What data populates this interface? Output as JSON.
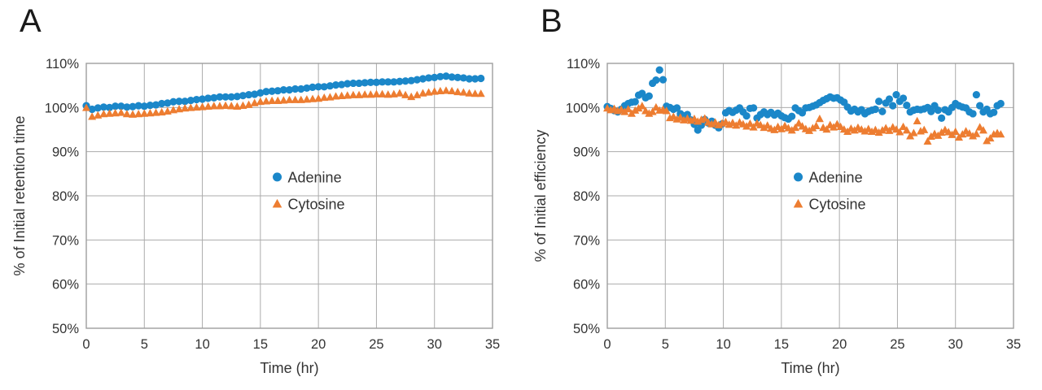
{
  "figure": {
    "background": "#FFFFFF",
    "grid_color": "#ABABAB",
    "border_color": "#9E9E9E",
    "text_color": "#333333"
  },
  "chart_data": [
    {
      "panel_label": "A",
      "type": "scatter",
      "title": "",
      "xlabel": "Time (hr)",
      "ylabel": "% of Initial retention time",
      "xlim": [
        0,
        35
      ],
      "xticks": [
        0,
        5,
        10,
        15,
        20,
        25,
        30,
        35
      ],
      "ylim": [
        50,
        110
      ],
      "yticks": [
        50,
        60,
        70,
        80,
        90,
        100,
        110
      ],
      "ytick_suffix": "%",
      "grid": true,
      "legend_position": "center-inside",
      "series": [
        {
          "name": "Adenine",
          "marker": "circle",
          "color": "#1B87C9",
          "t_start": 0,
          "t_step": 0.5,
          "values": [
            100.4,
            99.6,
            99.9,
            100.1,
            100.0,
            100.3,
            100.3,
            100.1,
            100.2,
            100.4,
            100.3,
            100.5,
            100.6,
            100.9,
            101.0,
            101.3,
            101.4,
            101.4,
            101.6,
            101.8,
            101.9,
            102.1,
            102.2,
            102.4,
            102.4,
            102.4,
            102.5,
            102.7,
            102.9,
            103.0,
            103.3,
            103.6,
            103.7,
            103.8,
            104.0,
            104.0,
            104.2,
            104.2,
            104.4,
            104.6,
            104.7,
            104.7,
            104.9,
            105.1,
            105.2,
            105.4,
            105.5,
            105.5,
            105.6,
            105.7,
            105.7,
            105.8,
            105.8,
            105.8,
            105.9,
            106.0,
            106.1,
            106.3,
            106.5,
            106.7,
            106.8,
            107.0,
            107.1,
            106.9,
            106.8,
            106.7,
            106.5,
            106.5,
            106.6
          ]
        },
        {
          "name": "Cytosine",
          "marker": "triangle",
          "color": "#ED7D31",
          "t_start": 0,
          "t_step": 0.5,
          "values": [
            99.9,
            97.9,
            98.2,
            98.5,
            98.6,
            98.7,
            98.8,
            98.5,
            98.4,
            98.5,
            98.6,
            98.7,
            98.8,
            98.9,
            99.1,
            99.4,
            99.6,
            99.8,
            99.9,
            100.0,
            100.1,
            100.2,
            100.3,
            100.3,
            100.4,
            100.3,
            100.2,
            100.4,
            100.6,
            101.0,
            101.3,
            101.4,
            101.5,
            101.5,
            101.6,
            101.7,
            101.7,
            101.7,
            101.8,
            101.9,
            102.0,
            102.2,
            102.3,
            102.5,
            102.6,
            102.7,
            102.8,
            102.8,
            102.9,
            102.9,
            103.0,
            103.0,
            102.9,
            103.0,
            103.2,
            102.8,
            102.4,
            102.8,
            103.2,
            103.4,
            103.6,
            103.7,
            103.8,
            103.7,
            103.5,
            103.4,
            103.2,
            103.1,
            103.1
          ]
        }
      ]
    },
    {
      "panel_label": "B",
      "type": "scatter",
      "title": "",
      "xlabel": "Time (hr)",
      "ylabel": "% of Initial efficiency",
      "xlim": [
        0,
        35
      ],
      "xticks": [
        0,
        5,
        10,
        15,
        20,
        25,
        30,
        35
      ],
      "ylim": [
        50,
        110
      ],
      "yticks": [
        50,
        60,
        70,
        80,
        90,
        100,
        110
      ],
      "ytick_suffix": "%",
      "grid": true,
      "legend_position": "center-inside",
      "series": [
        {
          "name": "Adenine",
          "marker": "circle",
          "color": "#1B87C9",
          "t_start": 0,
          "t_step": 0.3,
          "values": [
            100.2,
            99.8,
            99.3,
            99.0,
            99.6,
            100.4,
            100.9,
            101.2,
            101.3,
            102.8,
            103.2,
            102.2,
            102.6,
            105.5,
            106.2,
            108.5,
            106.3,
            100.3,
            100.0,
            99.6,
            99.9,
            98.6,
            98.1,
            98.4,
            97.2,
            96.2,
            94.9,
            96.0,
            97.3,
            96.5,
            96.9,
            96.0,
            95.4,
            96.3,
            98.8,
            99.3,
            98.9,
            99.4,
            99.9,
            99.0,
            98.1,
            99.8,
            99.9,
            97.6,
            98.4,
            99.0,
            98.4,
            98.9,
            98.3,
            98.7,
            98.1,
            97.7,
            97.4,
            98.0,
            99.9,
            99.3,
            98.8,
            99.9,
            100.0,
            100.3,
            100.6,
            101.1,
            101.6,
            102.0,
            102.4,
            102.1,
            102.2,
            101.7,
            101.2,
            100.1,
            99.2,
            99.6,
            99.0,
            99.5,
            98.6,
            99.1,
            99.4,
            99.6,
            101.4,
            99.1,
            101.0,
            101.9,
            100.4,
            102.9,
            101.4,
            102.1,
            100.5,
            99.0,
            99.4,
            99.6,
            99.5,
            99.7,
            100.0,
            99.1,
            100.4,
            99.4,
            97.6,
            99.5,
            99.0,
            100.0,
            100.9,
            100.4,
            100.1,
            99.9,
            99.0,
            98.6,
            102.9,
            100.4,
            99.0,
            99.6,
            98.6,
            98.9,
            100.4,
            100.9
          ]
        },
        {
          "name": "Cytosine",
          "marker": "triangle",
          "color": "#ED7D31",
          "t_start": 0,
          "t_step": 0.3,
          "values": [
            99.8,
            99.4,
            99.7,
            99.2,
            99.5,
            99.0,
            99.6,
            98.6,
            99.3,
            99.8,
            100.3,
            99.2,
            98.6,
            99.0,
            100.0,
            99.3,
            99.5,
            99.2,
            97.6,
            97.9,
            97.3,
            97.7,
            97.1,
            97.5,
            97.0,
            97.4,
            96.8,
            97.2,
            97.5,
            96.6,
            96.2,
            96.6,
            96.0,
            96.4,
            96.7,
            96.1,
            96.5,
            95.9,
            96.6,
            96.2,
            95.7,
            96.3,
            95.5,
            96.4,
            96.0,
            95.4,
            95.9,
            95.2,
            94.9,
            95.6,
            95.1,
            95.8,
            95.3,
            94.8,
            95.4,
            96.4,
            95.7,
            95.1,
            94.7,
            95.3,
            95.8,
            97.4,
            95.4,
            95.0,
            96.0,
            95.5,
            96.2,
            95.6,
            95.0,
            94.5,
            95.2,
            94.8,
            95.4,
            95.0,
            94.6,
            95.1,
            94.5,
            94.9,
            94.3,
            94.8,
            95.3,
            94.7,
            95.5,
            95.0,
            94.4,
            95.6,
            94.8,
            93.5,
            94.2,
            96.9,
            94.6,
            94.9,
            92.3,
            93.4,
            94.0,
            93.6,
            94.3,
            94.9,
            94.4,
            93.8,
            94.5,
            93.2,
            93.9,
            94.6,
            94.1,
            93.5,
            94.0,
            95.5,
            94.8,
            92.4,
            93.0,
            93.9,
            94.2,
            93.9
          ]
        }
      ]
    }
  ]
}
